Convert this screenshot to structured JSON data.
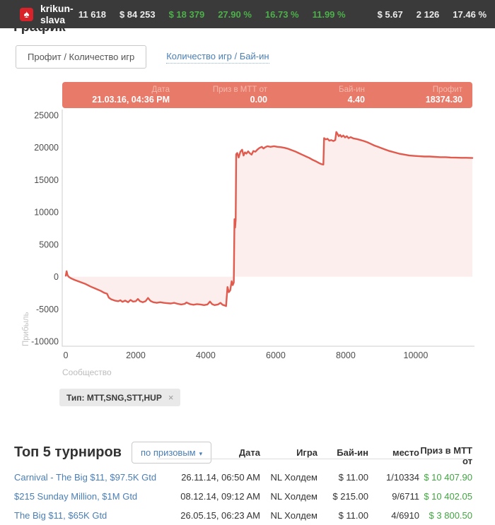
{
  "header": {
    "player": "krikun-slava",
    "logo_icon": "spade-icon",
    "stats": [
      {
        "value": "11 618",
        "color": "white"
      },
      {
        "value": "$ 84 253",
        "color": "white"
      },
      {
        "value": "$ 18 379",
        "color": "green"
      },
      {
        "value": "27.90 %",
        "color": "green"
      },
      {
        "value": "16.73 %",
        "color": "green"
      },
      {
        "value": "11.99 %",
        "color": "green"
      },
      {
        "value": "$ 5.67",
        "color": "white"
      },
      {
        "value": "2 126",
        "color": "white"
      },
      {
        "value": "17.46 %",
        "color": "white"
      }
    ]
  },
  "page": {
    "section_title": "График"
  },
  "tabs": [
    {
      "label": "Профит / Количество игр",
      "active": true
    },
    {
      "label": "Количество игр / Бай-ин",
      "active": false
    }
  ],
  "tooltip": {
    "items": [
      {
        "label": "Дата",
        "value": "21.03.16, 04:36 PM"
      },
      {
        "label": "Приз в МТТ от",
        "value": "0.00"
      },
      {
        "label": "Бай-ин",
        "value": "4.40"
      },
      {
        "label": "Профит",
        "value": "18374.30"
      }
    ]
  },
  "chart_data": {
    "type": "area",
    "title": "",
    "xlabel": "",
    "ylabel": "Прибыль",
    "xlim": [
      0,
      11618
    ],
    "ylim": [
      -10000,
      25000
    ],
    "xticks": [
      0,
      2000,
      4000,
      6000,
      8000,
      10000
    ],
    "yticks": [
      25000,
      20000,
      15000,
      10000,
      5000,
      0,
      -5000,
      -10000
    ],
    "grid": false,
    "legend": "none",
    "line_color": "#e05a4e",
    "fill_color": "rgba(224,90,78,0.10)",
    "axis_color": "#cccccc",
    "tick_color": "#4d4d4d",
    "series": [
      {
        "name": "Профит",
        "points": [
          [
            0,
            150
          ],
          [
            25,
            850
          ],
          [
            50,
            250
          ],
          [
            80,
            0
          ],
          [
            150,
            -250
          ],
          [
            250,
            -500
          ],
          [
            400,
            -800
          ],
          [
            550,
            -1100
          ],
          [
            700,
            -1500
          ],
          [
            850,
            -1850
          ],
          [
            1000,
            -2200
          ],
          [
            1100,
            -2500
          ],
          [
            1180,
            -2650
          ],
          [
            1230,
            -3250
          ],
          [
            1300,
            -3500
          ],
          [
            1400,
            -3700
          ],
          [
            1500,
            -3800
          ],
          [
            1560,
            -3650
          ],
          [
            1620,
            -3900
          ],
          [
            1700,
            -3700
          ],
          [
            1780,
            -3950
          ],
          [
            1850,
            -3600
          ],
          [
            1920,
            -3850
          ],
          [
            2000,
            -3800
          ],
          [
            2060,
            -3450
          ],
          [
            2120,
            -3800
          ],
          [
            2200,
            -3950
          ],
          [
            2280,
            -3800
          ],
          [
            2350,
            -3300
          ],
          [
            2420,
            -3750
          ],
          [
            2500,
            -3950
          ],
          [
            2600,
            -4050
          ],
          [
            2700,
            -3950
          ],
          [
            2800,
            -4050
          ],
          [
            2900,
            -4100
          ],
          [
            3000,
            -4150
          ],
          [
            3100,
            -4050
          ],
          [
            3200,
            -4200
          ],
          [
            3300,
            -4300
          ],
          [
            3400,
            -4200
          ],
          [
            3450,
            -4000
          ],
          [
            3550,
            -4250
          ],
          [
            3650,
            -4350
          ],
          [
            3750,
            -4250
          ],
          [
            3850,
            -4300
          ],
          [
            3950,
            -4400
          ],
          [
            4050,
            -4300
          ],
          [
            4120,
            -3850
          ],
          [
            4180,
            -4250
          ],
          [
            4250,
            -4400
          ],
          [
            4350,
            -4300
          ],
          [
            4420,
            -4050
          ],
          [
            4480,
            -4350
          ],
          [
            4540,
            -4450
          ],
          [
            4580,
            -4550
          ],
          [
            4620,
            -1600
          ],
          [
            4660,
            -2400
          ],
          [
            4700,
            -2100
          ],
          [
            4740,
            -700
          ],
          [
            4770,
            -1300
          ],
          [
            4800,
            -900
          ],
          [
            4820,
            8900
          ],
          [
            4840,
            7600
          ],
          [
            4855,
            8800
          ],
          [
            4870,
            18950
          ],
          [
            4900,
            19150
          ],
          [
            4940,
            18450
          ],
          [
            4990,
            19350
          ],
          [
            5040,
            19650
          ],
          [
            5080,
            18750
          ],
          [
            5120,
            19250
          ],
          [
            5160,
            19050
          ],
          [
            5210,
            19400
          ],
          [
            5260,
            19100
          ],
          [
            5310,
            18900
          ],
          [
            5360,
            19450
          ],
          [
            5420,
            19350
          ],
          [
            5480,
            19700
          ],
          [
            5540,
            19950
          ],
          [
            5600,
            20100
          ],
          [
            5650,
            19850
          ],
          [
            5700,
            20050
          ],
          [
            5760,
            20200
          ],
          [
            5850,
            20100
          ],
          [
            5950,
            20200
          ],
          [
            6050,
            20100
          ],
          [
            6150,
            20050
          ],
          [
            6250,
            19950
          ],
          [
            6350,
            19800
          ],
          [
            6450,
            19600
          ],
          [
            6550,
            19400
          ],
          [
            6650,
            19150
          ],
          [
            6750,
            18900
          ],
          [
            6850,
            18650
          ],
          [
            6950,
            18400
          ],
          [
            7050,
            18100
          ],
          [
            7150,
            17850
          ],
          [
            7250,
            17550
          ],
          [
            7320,
            17400
          ],
          [
            7360,
            17350
          ],
          [
            7380,
            21450
          ],
          [
            7430,
            21250
          ],
          [
            7480,
            21350
          ],
          [
            7530,
            21050
          ],
          [
            7580,
            21150
          ],
          [
            7650,
            21000
          ],
          [
            7700,
            21150
          ],
          [
            7730,
            22400
          ],
          [
            7760,
            22150
          ],
          [
            7800,
            21750
          ],
          [
            7840,
            21950
          ],
          [
            7880,
            21650
          ],
          [
            7930,
            21850
          ],
          [
            7980,
            21550
          ],
          [
            8030,
            21750
          ],
          [
            8080,
            21450
          ],
          [
            8140,
            21600
          ],
          [
            8220,
            21400
          ],
          [
            8320,
            21300
          ],
          [
            8420,
            21150
          ],
          [
            8520,
            21000
          ],
          [
            8620,
            20800
          ],
          [
            8720,
            20550
          ],
          [
            8820,
            20300
          ],
          [
            8920,
            20100
          ],
          [
            9020,
            19900
          ],
          [
            9120,
            19700
          ],
          [
            9220,
            19500
          ],
          [
            9320,
            19350
          ],
          [
            9420,
            19200
          ],
          [
            9520,
            19050
          ],
          [
            9620,
            18950
          ],
          [
            9720,
            18850
          ],
          [
            9820,
            18750
          ],
          [
            9950,
            18700
          ],
          [
            10100,
            18650
          ],
          [
            10250,
            18600
          ],
          [
            10400,
            18600
          ],
          [
            10550,
            18550
          ],
          [
            10700,
            18500
          ],
          [
            10850,
            18500
          ],
          [
            11000,
            18450
          ],
          [
            11150,
            18430
          ],
          [
            11300,
            18400
          ],
          [
            11450,
            18400
          ],
          [
            11618,
            18374
          ]
        ]
      }
    ]
  },
  "filters": {
    "community_label": "Сообщество",
    "tag": "Тип: MTT,SNG,STT,HUP",
    "tag_close": "×"
  },
  "top5": {
    "title": "Топ 5 турниров",
    "sort_dropdown": "по призовым",
    "sort_caret": "▾",
    "columns": [
      "Дата",
      "Игра",
      "Бай-ин",
      "место",
      "Приз в МТТ от"
    ],
    "rows": [
      {
        "name": "Carnival - The Big $11, $97.5K Gtd",
        "date": "26.11.14, 06:50 AM",
        "game": "NL Холдем",
        "buyin": "$ 11.00",
        "place": "1/10334",
        "prize": "$ 10 407.90"
      },
      {
        "name": "$215 Sunday Million, $1M Gtd",
        "date": "08.12.14, 09:12 AM",
        "game": "NL Холдем",
        "buyin": "$ 215.00",
        "place": "9/6711",
        "prize": "$ 10 402.05"
      },
      {
        "name": "The Big $11, $65K Gtd",
        "date": "26.05.15, 06:23 AM",
        "game": "NL Холдем",
        "buyin": "$ 11.00",
        "place": "4/6910",
        "prize": "$ 3 800.50"
      }
    ]
  },
  "colors": {
    "topbar_bg": "#3a3a3a",
    "stat_green": "#4db04a",
    "link_blue": "#4a7eb5",
    "line_red": "#e05a4e",
    "tooltip_bg": "#e87a6a",
    "prize_green": "#42a542"
  }
}
